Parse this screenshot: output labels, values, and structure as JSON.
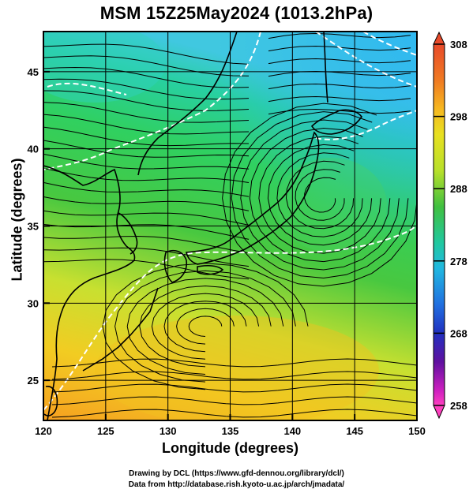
{
  "title": "MSM 15Z25May2024 (1013.2hPa)",
  "axes": {
    "xlabel": "Longitude (degrees)",
    "ylabel": "Latitude  (degrees)",
    "x_ticks": [
      "120",
      "125",
      "130",
      "135",
      "140",
      "145",
      "150"
    ],
    "y_ticks": [
      "25",
      "30",
      "35",
      "40",
      "45"
    ],
    "xlim": [
      120,
      150
    ],
    "ylim": [
      22.4,
      47.6
    ]
  },
  "colorbar": {
    "ticks": [
      "308",
      "298",
      "288",
      "278",
      "268",
      "258"
    ],
    "range": [
      258,
      308
    ],
    "colors_top_to_bottom": [
      "#e84a2a",
      "#f07a22",
      "#f6b820",
      "#e8e020",
      "#b8e02a",
      "#40c040",
      "#20c8a0",
      "#20b8e0",
      "#2070e0",
      "#2030c0",
      "#6010a0",
      "#d020c0",
      "#ff40c0"
    ]
  },
  "credits": {
    "line1": "Drawing by DCL (https://www.gfd-dennou.org/library/dcl/)",
    "line2": "Data from http://database.rish.kyoto-u.ac.jp/arch/jmadata/"
  }
}
